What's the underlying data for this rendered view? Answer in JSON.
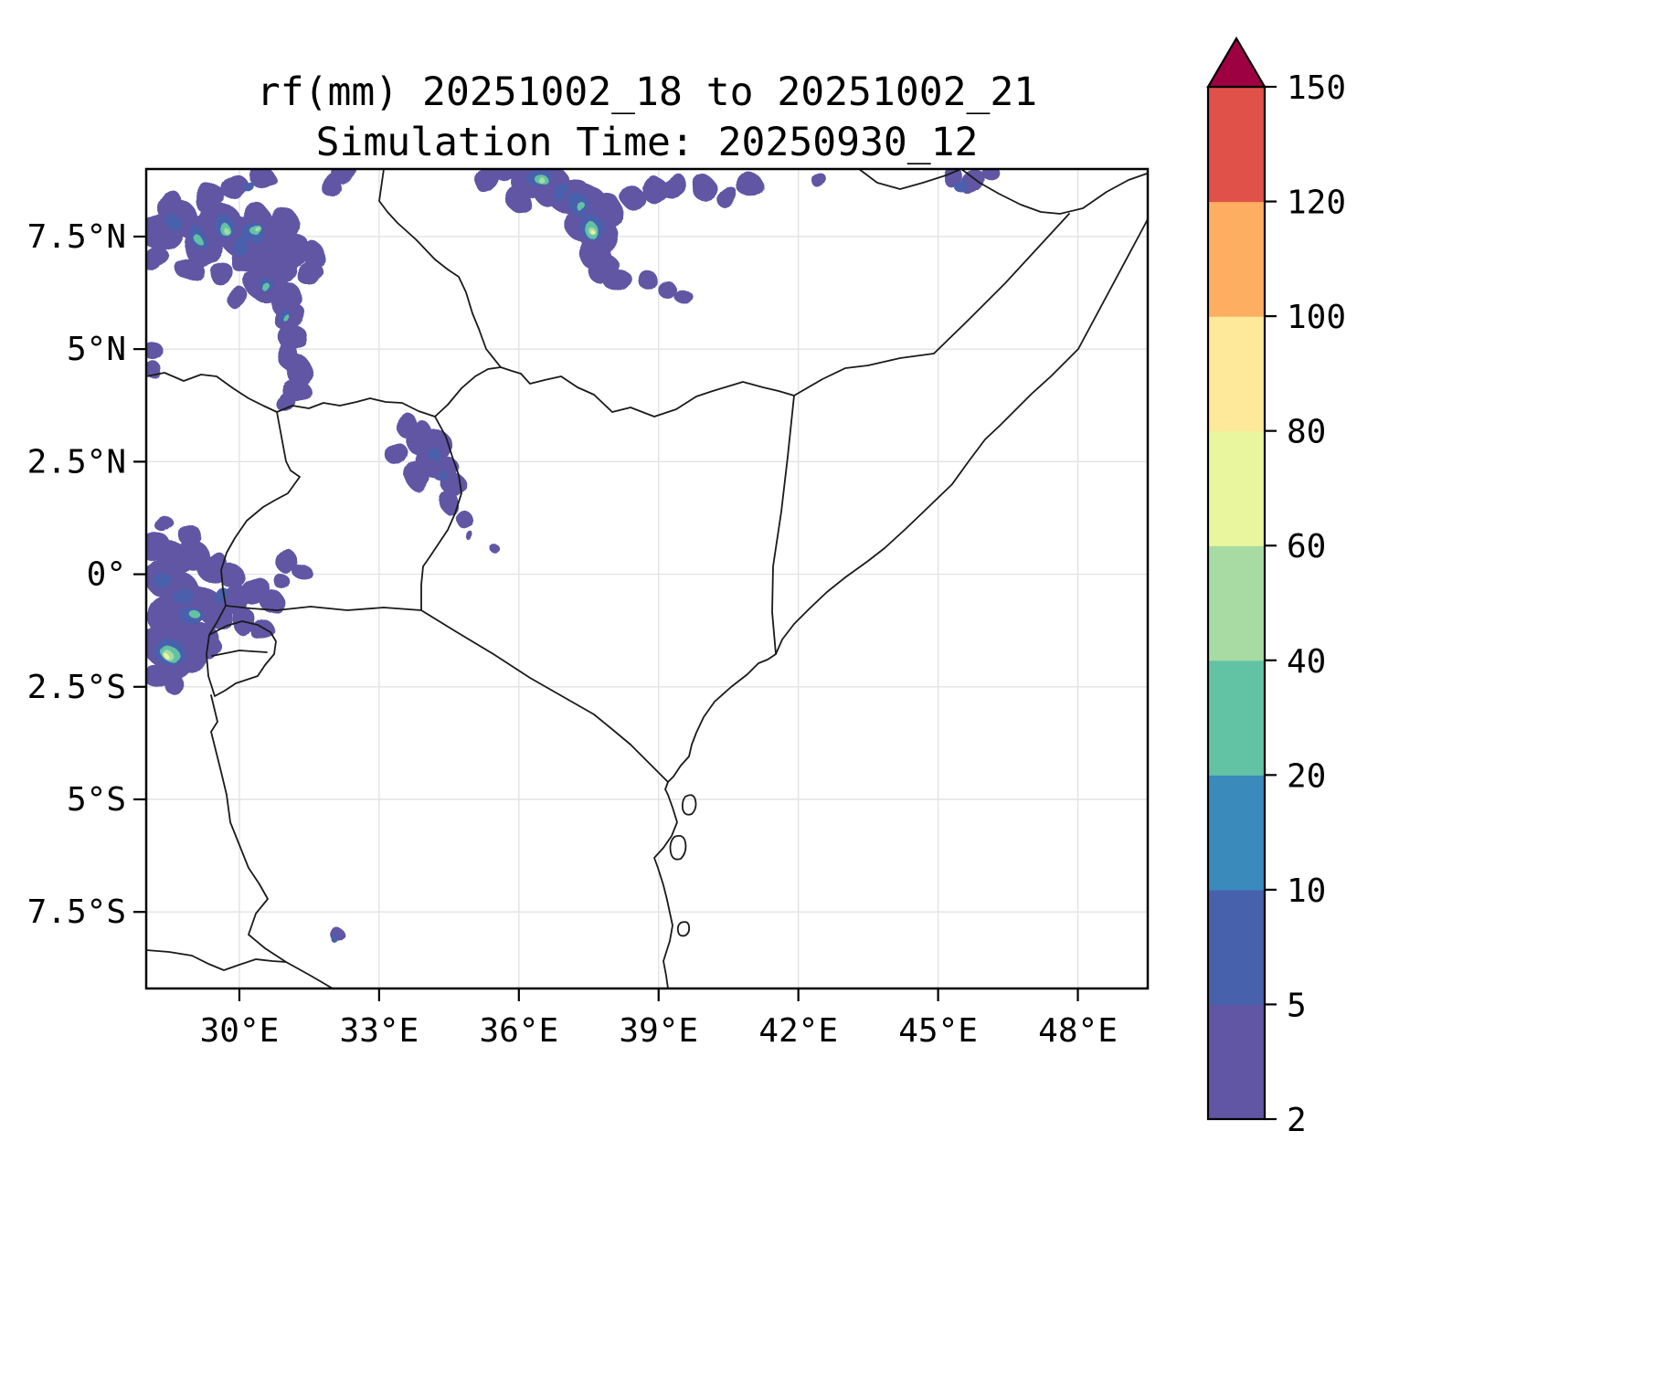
{
  "figure": {
    "title_line1": "rf(mm) 20251002_18 to 20251002_21",
    "title_line2": "Simulation Time: 20250930_12",
    "background": "#ffffff"
  },
  "axes": {
    "lon_min": 28.0,
    "lon_max": 49.5,
    "lat_min": -9.2,
    "lat_max": 9.0,
    "grid_color": "#e3e3e3",
    "x_ticks": [
      {
        "lon": 30,
        "label": "30°E"
      },
      {
        "lon": 33,
        "label": "33°E"
      },
      {
        "lon": 36,
        "label": "36°E"
      },
      {
        "lon": 39,
        "label": "39°E"
      },
      {
        "lon": 42,
        "label": "42°E"
      },
      {
        "lon": 45,
        "label": "45°E"
      },
      {
        "lon": 48,
        "label": "48°E"
      }
    ],
    "y_ticks": [
      {
        "lat": 7.5,
        "label": "7.5°N"
      },
      {
        "lat": 5,
        "label": "5°N"
      },
      {
        "lat": 2.5,
        "label": "2.5°N"
      },
      {
        "lat": 0,
        "label": "0°"
      },
      {
        "lat": -2.5,
        "label": "2.5°S"
      },
      {
        "lat": -5,
        "label": "5°S"
      },
      {
        "lat": -7.5,
        "label": "7.5°S"
      }
    ]
  },
  "chart_data": {
    "type": "heatmap",
    "title": "rf(mm) 20251002_18 to 20251002_21",
    "subtitle": "Simulation Time: 20250930_12",
    "variable": "rf",
    "units": "mm",
    "extent": {
      "lon_min": 28.0,
      "lon_max": 49.5,
      "lat_min": -9.2,
      "lat_max": 9.0
    },
    "colorbar": {
      "levels": [
        2,
        5,
        10,
        20,
        40,
        60,
        80,
        100,
        120,
        150
      ],
      "tick_labels": [
        "2",
        "5",
        "10",
        "20",
        "40",
        "60",
        "80",
        "100",
        "120",
        "150"
      ],
      "colors": [
        "#6156a4",
        "#4861ad",
        "#3b8abc",
        "#62c2a4",
        "#a8dba3",
        "#e9f69d",
        "#fee899",
        "#fdae61",
        "#e0514a"
      ],
      "extend_color": "#9e0142",
      "extend": "max"
    },
    "rain_cells_format": [
      "lon_deg_E",
      "lat_deg_N",
      "radius_deg",
      "rf_mm"
    ],
    "rain_cells": [
      [
        28.3,
        7.6,
        0.45,
        3
      ],
      [
        28.8,
        7.9,
        0.4,
        3
      ],
      [
        29.2,
        7.4,
        0.5,
        3
      ],
      [
        29.6,
        7.8,
        0.45,
        3
      ],
      [
        30.0,
        7.5,
        0.5,
        3
      ],
      [
        30.4,
        7.8,
        0.4,
        3
      ],
      [
        30.2,
        7.1,
        0.45,
        3
      ],
      [
        30.7,
        7.4,
        0.45,
        3
      ],
      [
        31.0,
        7.8,
        0.35,
        3
      ],
      [
        31.2,
        7.2,
        0.35,
        3
      ],
      [
        30.8,
        6.8,
        0.4,
        3
      ],
      [
        30.5,
        6.4,
        0.4,
        3
      ],
      [
        31.0,
        6.1,
        0.4,
        3
      ],
      [
        31.1,
        5.7,
        0.35,
        3
      ],
      [
        31.2,
        5.2,
        0.35,
        3
      ],
      [
        31.1,
        4.8,
        0.3,
        3
      ],
      [
        31.3,
        4.5,
        0.3,
        3
      ],
      [
        31.2,
        4.1,
        0.3,
        3
      ],
      [
        31.0,
        3.8,
        0.25,
        3
      ],
      [
        29.4,
        8.3,
        0.35,
        3
      ],
      [
        29.9,
        8.6,
        0.3,
        3
      ],
      [
        30.5,
        8.8,
        0.3,
        3
      ],
      [
        28.5,
        8.2,
        0.35,
        3
      ],
      [
        28.2,
        7.0,
        0.3,
        3
      ],
      [
        28.9,
        6.8,
        0.3,
        3
      ],
      [
        29.6,
        6.7,
        0.3,
        3
      ],
      [
        30.0,
        6.1,
        0.25,
        3
      ],
      [
        31.5,
        6.7,
        0.3,
        3
      ],
      [
        31.6,
        7.1,
        0.3,
        3
      ],
      [
        32.0,
        8.6,
        0.25,
        3
      ],
      [
        32.3,
        8.9,
        0.3,
        3
      ],
      [
        28.1,
        5.0,
        0.25,
        3
      ],
      [
        28.15,
        4.55,
        0.2,
        3
      ],
      [
        29.1,
        7.5,
        0.2,
        7
      ],
      [
        29.7,
        7.7,
        0.22,
        7
      ],
      [
        30.3,
        7.6,
        0.25,
        7
      ],
      [
        30.6,
        6.4,
        0.18,
        7
      ],
      [
        31.0,
        5.7,
        0.15,
        7
      ],
      [
        30.2,
        8.6,
        0.12,
        7
      ],
      [
        28.6,
        7.8,
        0.18,
        7
      ],
      [
        30.0,
        7.3,
        0.2,
        7
      ],
      [
        29.7,
        7.65,
        0.12,
        25
      ],
      [
        30.35,
        7.65,
        0.13,
        25
      ],
      [
        29.1,
        7.45,
        0.1,
        25
      ],
      [
        30.6,
        6.35,
        0.1,
        25
      ],
      [
        31.05,
        5.65,
        0.08,
        25
      ],
      [
        29.72,
        7.62,
        0.06,
        45
      ],
      [
        30.38,
        7.68,
        0.06,
        45
      ],
      [
        35.3,
        8.8,
        0.3,
        3
      ],
      [
        35.7,
        8.95,
        0.25,
        3
      ],
      [
        36.2,
        8.7,
        0.4,
        3
      ],
      [
        36.7,
        8.6,
        0.45,
        3
      ],
      [
        37.1,
        8.4,
        0.45,
        3
      ],
      [
        37.5,
        8.25,
        0.45,
        3
      ],
      [
        37.9,
        8.05,
        0.4,
        3
      ],
      [
        37.4,
        7.85,
        0.45,
        3
      ],
      [
        37.7,
        7.55,
        0.45,
        3
      ],
      [
        37.6,
        7.15,
        0.4,
        3
      ],
      [
        37.8,
        6.8,
        0.35,
        3
      ],
      [
        38.1,
        6.55,
        0.3,
        3
      ],
      [
        38.45,
        8.35,
        0.3,
        3
      ],
      [
        38.9,
        8.55,
        0.3,
        3
      ],
      [
        39.3,
        8.65,
        0.3,
        3
      ],
      [
        36.0,
        8.3,
        0.3,
        3
      ],
      [
        40.0,
        8.55,
        0.3,
        3
      ],
      [
        40.5,
        8.35,
        0.25,
        3
      ],
      [
        41.0,
        8.6,
        0.3,
        3
      ],
      [
        38.8,
        6.5,
        0.25,
        3
      ],
      [
        39.2,
        6.3,
        0.2,
        3
      ],
      [
        39.5,
        6.2,
        0.18,
        3
      ],
      [
        42.4,
        8.8,
        0.2,
        3
      ],
      [
        36.45,
        8.8,
        0.25,
        7
      ],
      [
        37.55,
        7.7,
        0.3,
        7
      ],
      [
        37.3,
        8.2,
        0.25,
        7
      ],
      [
        36.9,
        8.5,
        0.2,
        7
      ],
      [
        36.5,
        8.75,
        0.14,
        25
      ],
      [
        37.55,
        7.65,
        0.18,
        25
      ],
      [
        37.35,
        8.15,
        0.1,
        25
      ],
      [
        37.57,
        7.62,
        0.09,
        45
      ],
      [
        36.52,
        8.72,
        0.07,
        45
      ],
      [
        37.58,
        7.6,
        0.045,
        65
      ],
      [
        45.3,
        8.85,
        0.25,
        3
      ],
      [
        45.75,
        8.7,
        0.3,
        3
      ],
      [
        46.15,
        8.9,
        0.2,
        3
      ],
      [
        45.5,
        8.6,
        0.15,
        7
      ],
      [
        33.6,
        3.3,
        0.3,
        3
      ],
      [
        33.9,
        3.0,
        0.35,
        3
      ],
      [
        34.25,
        2.85,
        0.35,
        3
      ],
      [
        34.1,
        2.5,
        0.35,
        3
      ],
      [
        33.8,
        2.2,
        0.3,
        3
      ],
      [
        34.4,
        2.35,
        0.3,
        3
      ],
      [
        34.6,
        2.0,
        0.3,
        3
      ],
      [
        34.5,
        1.6,
        0.25,
        3
      ],
      [
        33.4,
        2.65,
        0.25,
        3
      ],
      [
        34.8,
        1.25,
        0.2,
        3
      ],
      [
        35.5,
        0.55,
        0.12,
        3
      ],
      [
        34.9,
        0.9,
        0.1,
        3
      ],
      [
        34.15,
        2.7,
        0.15,
        7
      ],
      [
        34.35,
        2.2,
        0.12,
        7
      ],
      [
        28.2,
        0.6,
        0.35,
        3
      ],
      [
        28.6,
        0.35,
        0.4,
        3
      ],
      [
        29.0,
        0.45,
        0.35,
        3
      ],
      [
        29.4,
        0.2,
        0.35,
        3
      ],
      [
        29.8,
        0.0,
        0.3,
        3
      ],
      [
        28.3,
        -0.1,
        0.4,
        3
      ],
      [
        28.7,
        -0.4,
        0.45,
        3
      ],
      [
        29.1,
        -0.6,
        0.45,
        3
      ],
      [
        29.5,
        -0.85,
        0.4,
        3
      ],
      [
        29.9,
        -0.55,
        0.35,
        3
      ],
      [
        30.3,
        -0.35,
        0.35,
        3
      ],
      [
        30.7,
        -0.6,
        0.3,
        3
      ],
      [
        28.4,
        -0.95,
        0.45,
        3
      ],
      [
        28.8,
        -1.2,
        0.45,
        3
      ],
      [
        29.2,
        -1.45,
        0.4,
        3
      ],
      [
        28.3,
        -1.6,
        0.45,
        3
      ],
      [
        28.6,
        -1.95,
        0.4,
        3
      ],
      [
        29.0,
        -1.85,
        0.35,
        3
      ],
      [
        29.4,
        -1.65,
        0.3,
        3
      ],
      [
        30.1,
        -1.05,
        0.3,
        3
      ],
      [
        30.5,
        -1.25,
        0.25,
        3
      ],
      [
        28.2,
        -2.25,
        0.3,
        3
      ],
      [
        28.6,
        -2.45,
        0.25,
        3
      ],
      [
        31.0,
        0.3,
        0.25,
        3
      ],
      [
        31.3,
        0.1,
        0.2,
        3
      ],
      [
        30.9,
        -0.15,
        0.2,
        3
      ],
      [
        28.9,
        0.9,
        0.25,
        3
      ],
      [
        28.4,
        1.1,
        0.2,
        3
      ],
      [
        28.5,
        -1.7,
        0.3,
        7
      ],
      [
        29.0,
        -0.95,
        0.25,
        7
      ],
      [
        29.6,
        -0.45,
        0.2,
        7
      ],
      [
        28.8,
        -0.5,
        0.2,
        7
      ],
      [
        28.35,
        -0.15,
        0.2,
        7
      ],
      [
        28.5,
        -1.75,
        0.18,
        25
      ],
      [
        29.05,
        -0.9,
        0.12,
        25
      ],
      [
        28.45,
        -1.78,
        0.1,
        45
      ],
      [
        28.42,
        -1.8,
        0.05,
        65
      ],
      [
        32.1,
        -8.0,
        0.18,
        3
      ],
      [
        32.05,
        -8.1,
        0.1,
        7
      ]
    ]
  }
}
